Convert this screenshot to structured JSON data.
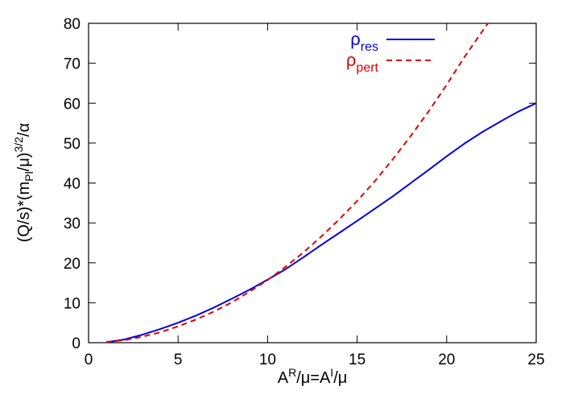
{
  "chart_data": {
    "type": "line",
    "title": "",
    "xlabel": {
      "base": "A",
      "sup1": "R",
      "mid": "/μ=A",
      "sup2": "I",
      "end": "/μ"
    },
    "ylabel": {
      "base": "(Q/s)*(m",
      "sub": "Pl",
      "mid": "/μ)",
      "sup": "3/2",
      "end": "/α"
    },
    "xlim": [
      0,
      25
    ],
    "ylim": [
      0,
      80
    ],
    "xticks": [
      "0",
      "5",
      "10",
      "15",
      "20",
      "25"
    ],
    "yticks": [
      "0",
      "10",
      "20",
      "30",
      "40",
      "50",
      "60",
      "70",
      "80"
    ],
    "grid": false,
    "legend_position": "top-right",
    "series": [
      {
        "name_base": "ρ",
        "name_sub": "res",
        "color": "#0000e0",
        "style": "solid",
        "x": [
          1,
          2,
          3,
          4,
          5,
          6,
          7,
          8,
          9,
          10,
          11,
          12,
          13,
          14,
          15,
          16,
          17,
          18,
          19,
          20,
          21,
          22,
          23,
          24,
          25
        ],
        "y": [
          0.1,
          0.8,
          2.0,
          3.4,
          5.0,
          6.8,
          8.8,
          11.0,
          13.3,
          15.8,
          18.4,
          21.4,
          24.5,
          27.5,
          30.5,
          33.6,
          36.7,
          40.0,
          43.3,
          46.7,
          49.9,
          52.8,
          55.4,
          57.9,
          60.0
        ]
      },
      {
        "name_base": "ρ",
        "name_sub": "pert",
        "color": "#e00000",
        "style": "dashed",
        "x": [
          1,
          2,
          3,
          4,
          5,
          6,
          7,
          8,
          9,
          10,
          11,
          12,
          13,
          14,
          15,
          16,
          17,
          18,
          19,
          20,
          21,
          22.3
        ],
        "y": [
          0.2,
          0.6,
          1.5,
          2.6,
          4.1,
          5.8,
          7.8,
          10.1,
          12.8,
          15.7,
          19.0,
          22.6,
          26.6,
          30.9,
          35.5,
          40.5,
          46.0,
          51.8,
          58.0,
          64.6,
          71.6,
          80.0
        ]
      }
    ]
  }
}
